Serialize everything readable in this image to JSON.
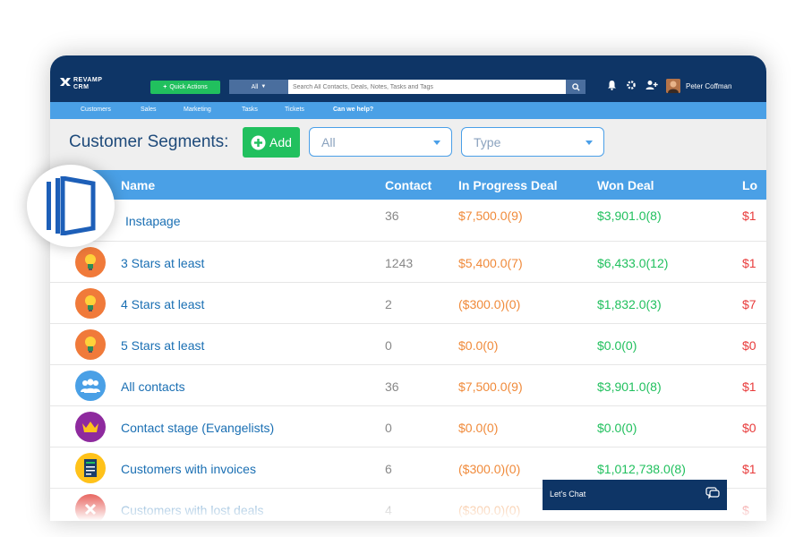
{
  "app": {
    "logo_text_1": "REVAMP",
    "logo_text_2": "CRM",
    "quick_actions": "Quick Actions",
    "search_scope": "All",
    "search_placeholder": "Search All Contacts, Deals, Notes, Tasks and Tags",
    "user_name": "Peter Coffman"
  },
  "nav": {
    "items": [
      {
        "label": "Customers"
      },
      {
        "label": "Sales"
      },
      {
        "label": "Marketing"
      },
      {
        "label": "Tasks"
      },
      {
        "label": "Tickets"
      },
      {
        "label": "Can we help?"
      }
    ]
  },
  "segments": {
    "title": "Customer Segments:",
    "add_label": "Add",
    "filter_all": "All",
    "filter_type": "Type"
  },
  "table": {
    "columns": [
      "Name",
      "Contact",
      "In Progress Deal",
      "Won Deal",
      "Lo"
    ],
    "rows": [
      {
        "icon": "instapage-icon",
        "name": "Instapage",
        "contact": "36",
        "in_progress": "$7,500.0(9)",
        "won": "$3,901.0(8)",
        "lost": "$1"
      },
      {
        "icon": "lightbulb-icon",
        "name": "3 Stars at least",
        "contact": "1243",
        "in_progress": "$5,400.0(7)",
        "won": "$6,433.0(12)",
        "lost": "$1"
      },
      {
        "icon": "lightbulb-icon",
        "name": "4 Stars at least",
        "contact": "2",
        "in_progress": "($300.0)(0)",
        "won": "$1,832.0(3)",
        "lost": "$7"
      },
      {
        "icon": "lightbulb-icon",
        "name": "5 Stars at least",
        "contact": "0",
        "in_progress": "$0.0(0)",
        "won": "$0.0(0)",
        "lost": "$0"
      },
      {
        "icon": "group-icon",
        "name": "All contacts",
        "contact": "36",
        "in_progress": "$7,500.0(9)",
        "won": "$3,901.0(8)",
        "lost": "$1"
      },
      {
        "icon": "crown-icon",
        "name": "Contact stage (Evangelists)",
        "contact": "0",
        "in_progress": "$0.0(0)",
        "won": "$0.0(0)",
        "lost": "$0"
      },
      {
        "icon": "invoice-icon",
        "name": "Customers with invoices",
        "contact": "6",
        "in_progress": "($300.0)(0)",
        "won": "$1,012,738.0(8)",
        "lost": "$1"
      },
      {
        "icon": "lost-deal-icon",
        "name": "Customers with lost deals",
        "contact": "4",
        "in_progress": "($300.0)(0)",
        "won": "",
        "lost": "$"
      }
    ]
  },
  "chat": {
    "label": "Let's Chat"
  },
  "colors": {
    "topbar": "#0e3566",
    "navbar": "#4aa0e6",
    "accent_green": "#21c05e",
    "progress_orange": "#f08a3a",
    "won_green": "#21c05e",
    "lost_red": "#e83b3b",
    "link_blue": "#1a6fb3"
  }
}
